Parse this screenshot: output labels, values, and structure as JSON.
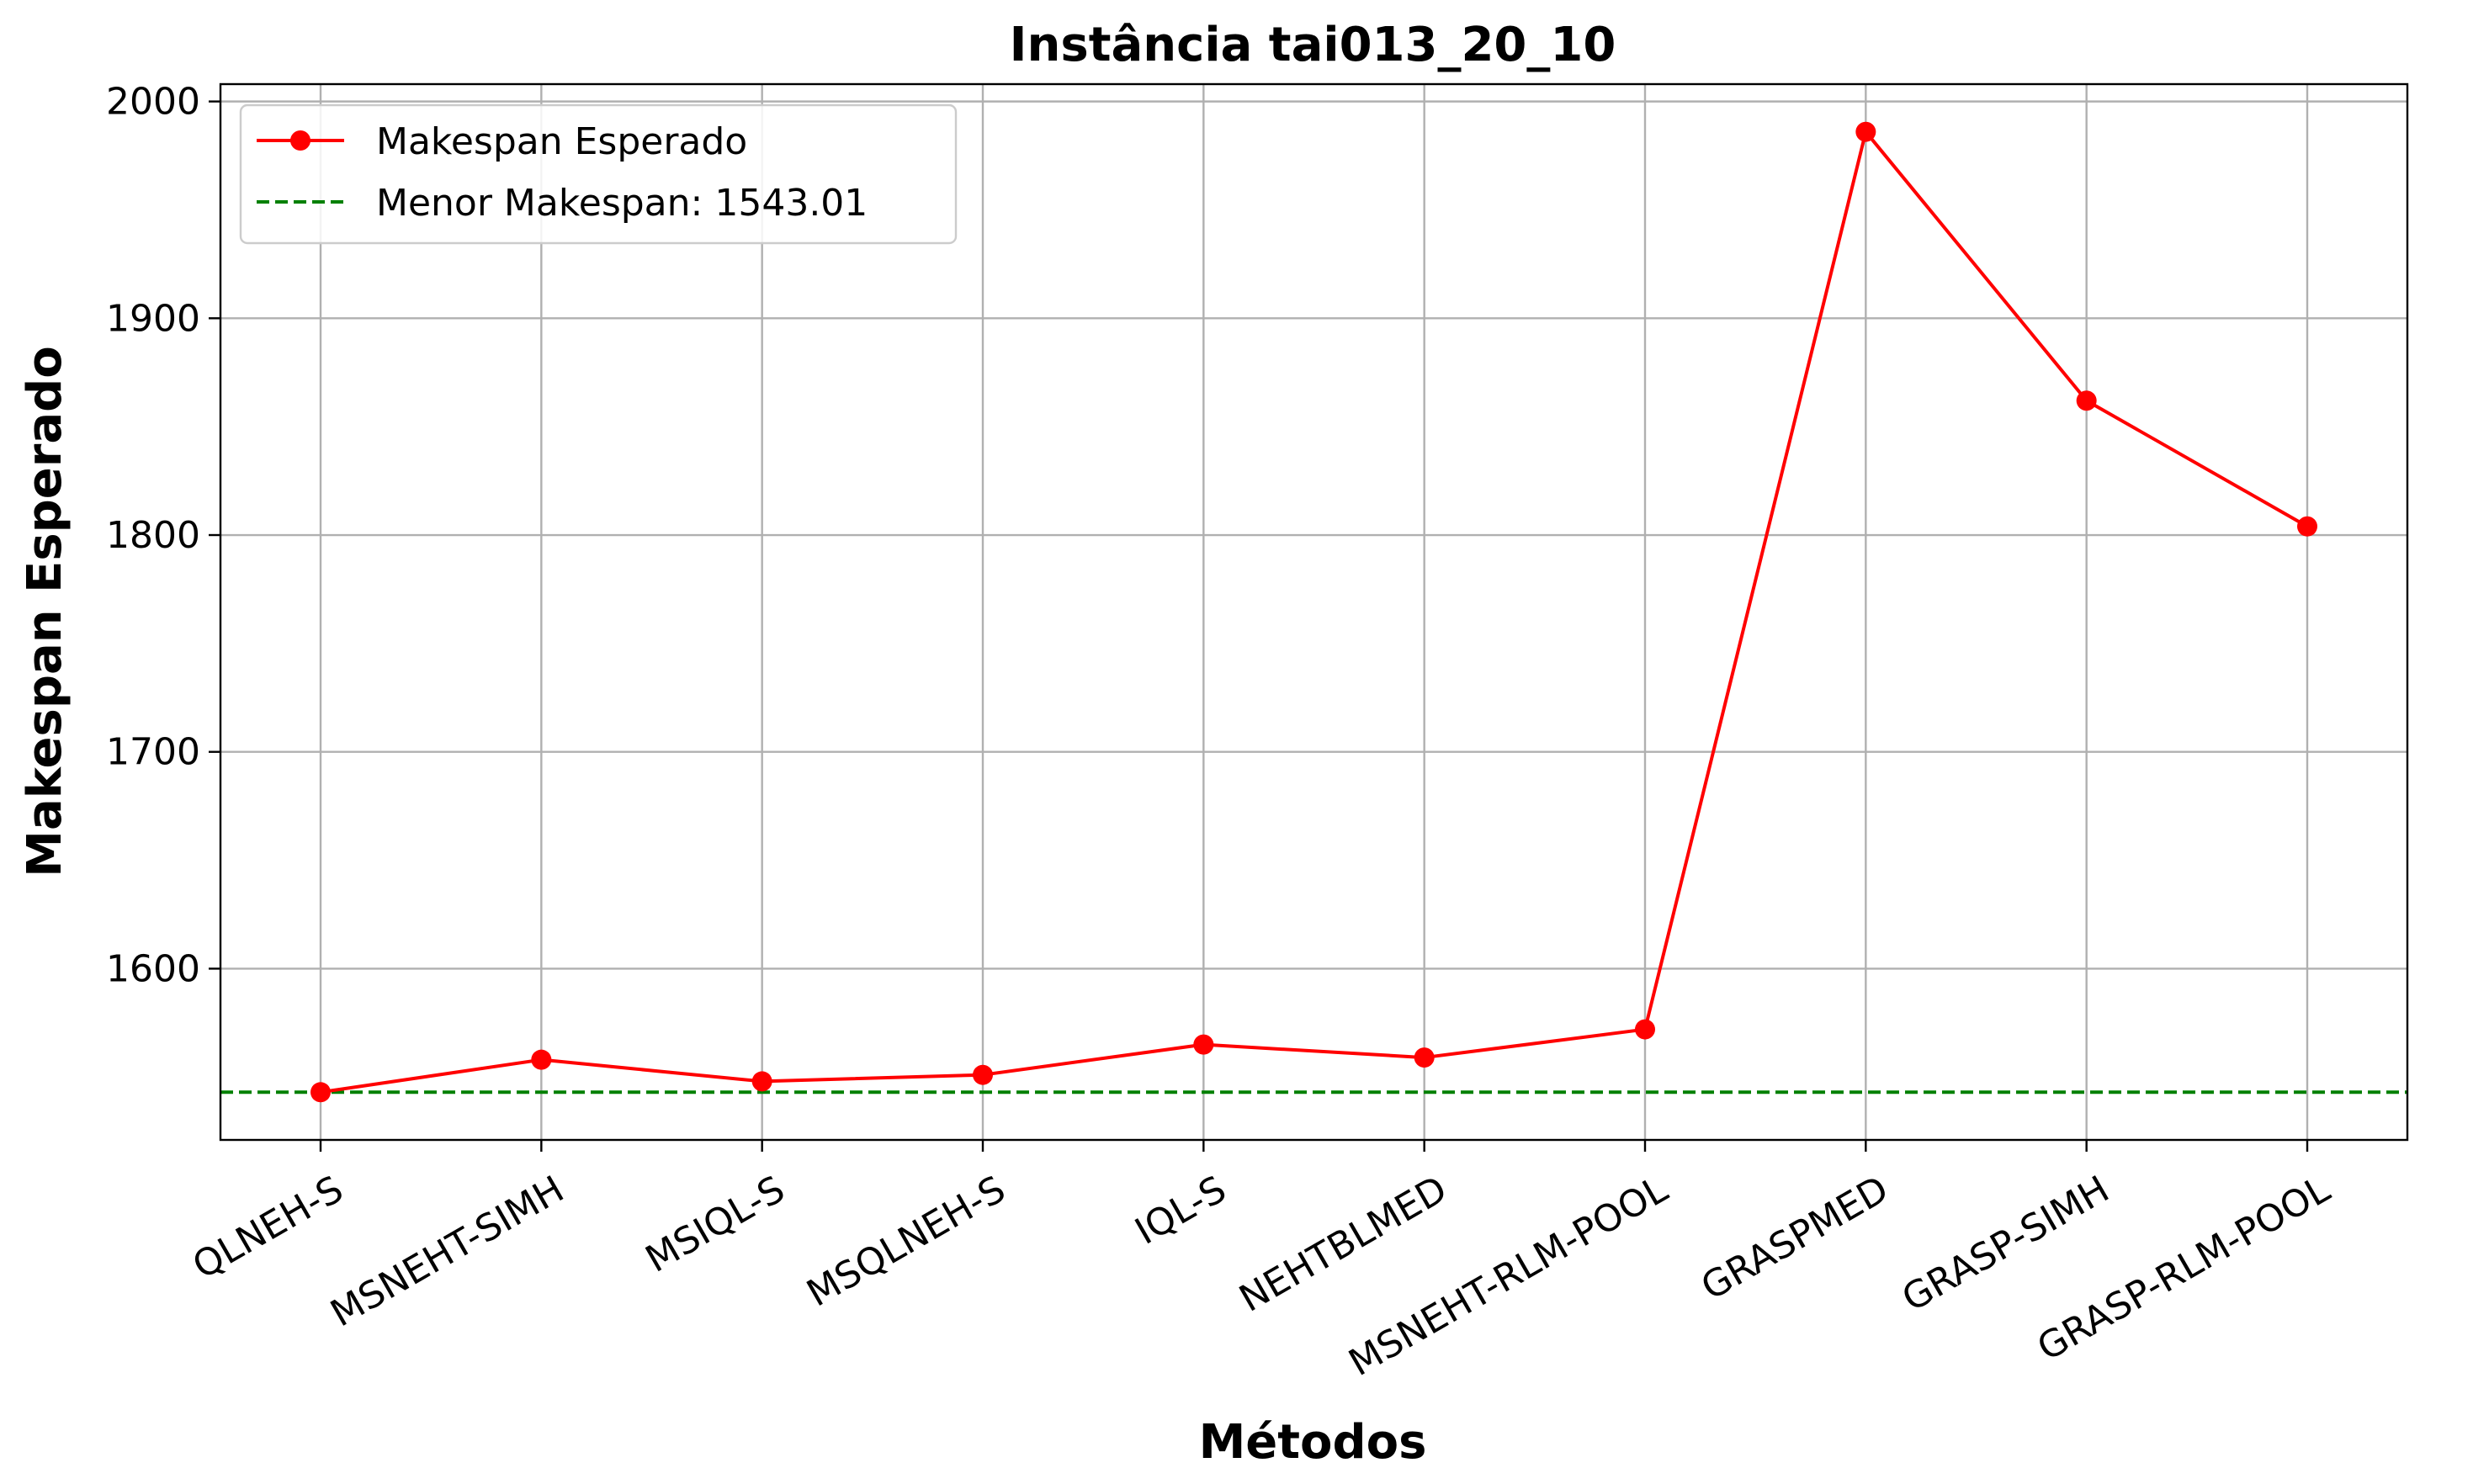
{
  "chart_data": {
    "type": "line",
    "title": "Instância tai013_20_10",
    "xlabel": "Métodos",
    "ylabel": "Makespan Esperado",
    "categories": [
      "QLNEH-S",
      "MSNEHT-SIMH",
      "MSIQL-S",
      "MSQLNEH-S",
      "IQL-S",
      "NEHTBLMED",
      "MSNEHT-RLM-POOL",
      "GRASPMED",
      "GRASP-SIMH",
      "GRASP-RLM-POOL"
    ],
    "series": [
      {
        "name": "Makespan Esperado",
        "color": "#ff0000",
        "marker": "circle",
        "values": [
          1543.01,
          1558,
          1548,
          1551,
          1565,
          1559,
          1572,
          1986,
          1862,
          1804
        ]
      }
    ],
    "reference_line": {
      "label": "Menor Makespan: 1543.01",
      "value": 1543.01,
      "color": "#008000",
      "style": "dashed"
    },
    "yticks": [
      1600,
      1700,
      1800,
      1900,
      2000
    ],
    "ylim": [
      1521,
      2008
    ],
    "grid": true,
    "legend_position": "top-left",
    "xtick_rotation": 30
  }
}
